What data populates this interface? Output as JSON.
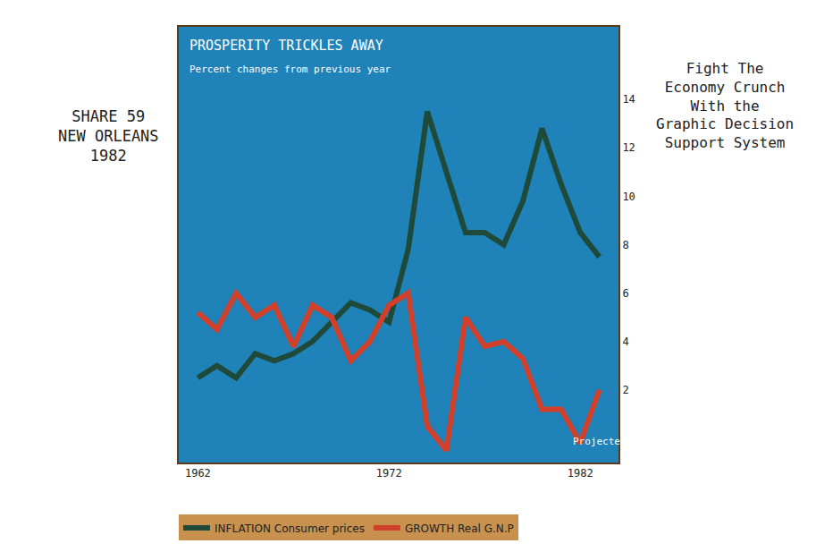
{
  "chart_data": {
    "type": "line",
    "title": "PROSPERITY TRICKLES AWAY",
    "subtitle": "Percent changes from previous year",
    "annotation": "Projected",
    "left_note": [
      "SHARE 59",
      "NEW ORLEANS",
      "1982"
    ],
    "right_note": [
      "Fight The",
      "Economy Crunch",
      "With the",
      "Graphic Decision",
      "Support System"
    ],
    "x": [
      1962,
      1963,
      1964,
      1965,
      1966,
      1967,
      1968,
      1969,
      1970,
      1971,
      1972,
      1973,
      1974,
      1975,
      1976,
      1977,
      1978,
      1979,
      1980,
      1981,
      1982,
      1983
    ],
    "series": [
      {
        "name": "INFLATION Consumer prices",
        "color": "#1f4a3a",
        "values": [
          2.5,
          3.0,
          2.5,
          3.5,
          3.2,
          3.5,
          4.0,
          4.8,
          5.6,
          5.3,
          4.8,
          7.8,
          13.5,
          11.0,
          8.5,
          8.5,
          8.0,
          9.8,
          12.8,
          10.5,
          8.5,
          7.5
        ]
      },
      {
        "name": "GROWTH Real G.N.P",
        "color": "#d0402a",
        "values": [
          5.2,
          4.5,
          6.0,
          5.0,
          5.5,
          3.8,
          5.5,
          5.0,
          3.2,
          4.0,
          5.5,
          6.0,
          0.5,
          -0.5,
          5.0,
          3.8,
          4.0,
          3.3,
          1.2,
          1.2,
          -0.2,
          2.0
        ]
      }
    ],
    "xlim": [
      1961,
      1984
    ],
    "xticks": [
      1962,
      1972,
      1982
    ],
    "ylim": [
      -1,
      17
    ],
    "yticks": [
      2,
      4,
      6,
      8,
      10,
      12,
      14
    ],
    "grid": false,
    "legend": "bottom"
  }
}
